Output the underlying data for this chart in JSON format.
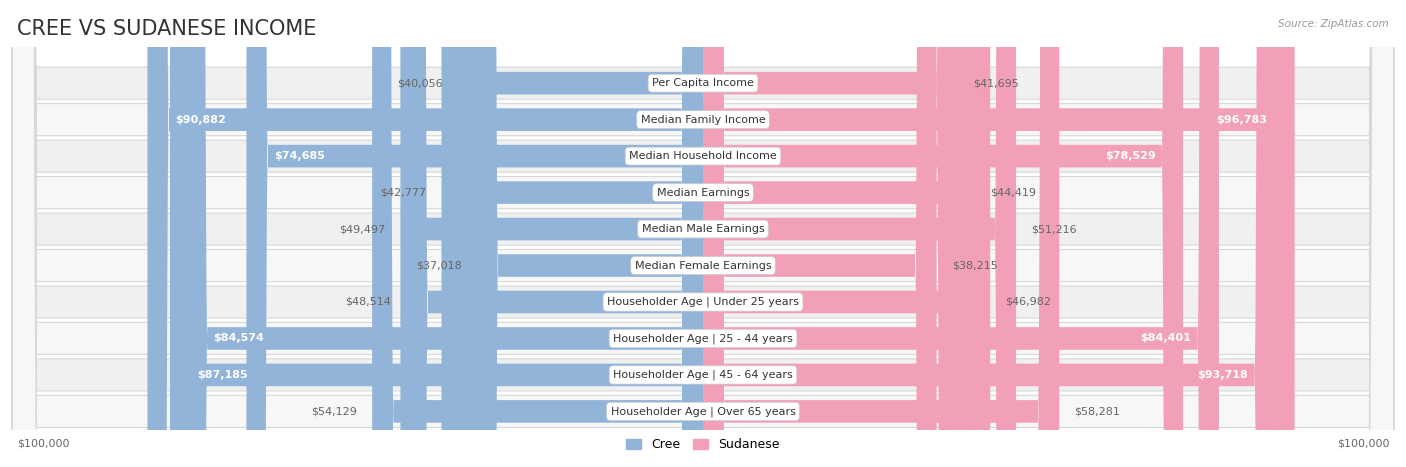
{
  "title": "CREE VS SUDANESE INCOME",
  "source": "Source: ZipAtlas.com",
  "max_value": 100000,
  "categories": [
    "Per Capita Income",
    "Median Family Income",
    "Median Household Income",
    "Median Earnings",
    "Median Male Earnings",
    "Median Female Earnings",
    "Householder Age | Under 25 years",
    "Householder Age | 25 - 44 years",
    "Householder Age | 45 - 64 years",
    "Householder Age | Over 65 years"
  ],
  "cree_values": [
    40056,
    90882,
    74685,
    42777,
    49497,
    37018,
    48514,
    84574,
    87185,
    54129
  ],
  "sudanese_values": [
    41695,
    96783,
    78529,
    44419,
    51216,
    38215,
    46982,
    84401,
    93718,
    58281
  ],
  "cree_color": "#92b4d8",
  "sudanese_color": "#f2a0b8",
  "row_bg_colors": [
    "#f0f0f0",
    "#f7f7f7"
  ],
  "row_border_color": "#d8d8d8",
  "bg_color": "#ffffff",
  "title_color": "#333333",
  "title_fontsize": 15,
  "label_fontsize": 8,
  "value_fontsize": 8,
  "legend_fontsize": 9,
  "value_inside_color": "#ffffff",
  "value_outside_color": "#666666",
  "inside_threshold": 70000
}
